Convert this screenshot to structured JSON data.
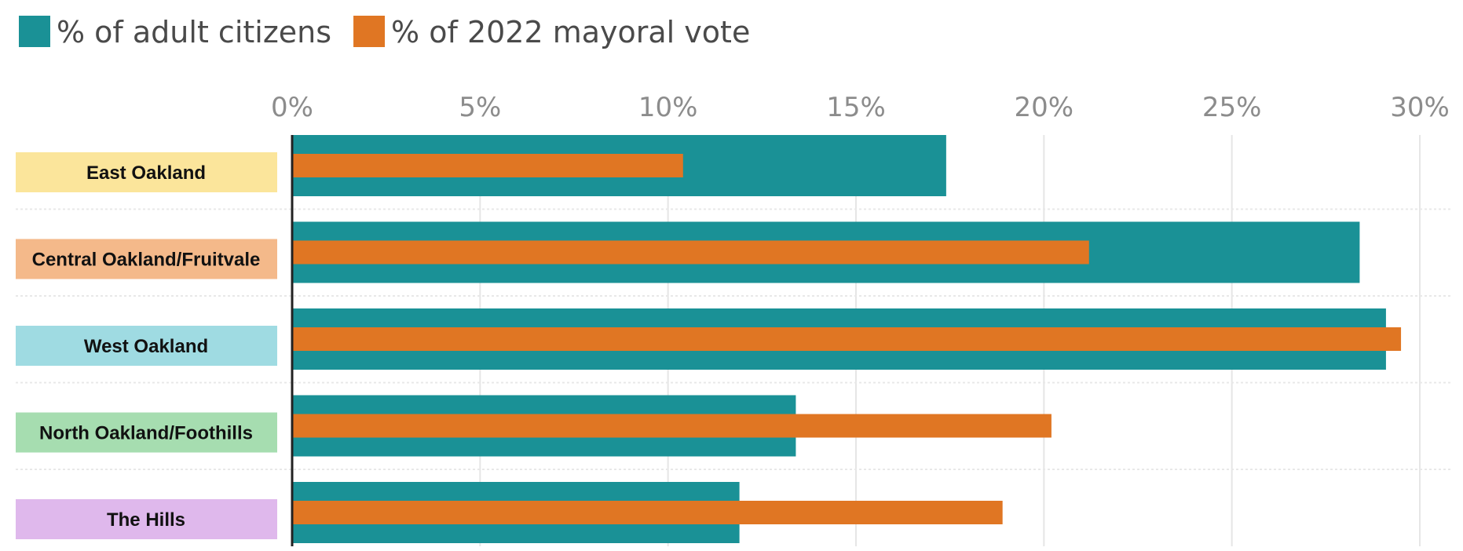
{
  "chart_data": {
    "type": "bar",
    "orientation": "horizontal",
    "categories": [
      "East Oakland",
      "Central Oakland/Fruitvale",
      "West Oakland",
      "North Oakland/Foothills",
      "The Hills"
    ],
    "category_colors": [
      "#fbe59b",
      "#f4b98a",
      "#9fdbe2",
      "#a6ddb0",
      "#dfb8ec"
    ],
    "series": [
      {
        "name": "% of adult citizens",
        "color": "#1a9196",
        "values": [
          17.4,
          28.4,
          29.1,
          13.4,
          11.9
        ]
      },
      {
        "name": "% of 2022 mayoral vote",
        "color": "#e07623",
        "values": [
          10.4,
          21.2,
          29.5,
          20.2,
          18.9
        ]
      }
    ],
    "xlim": [
      0,
      30
    ],
    "xticks": [
      0,
      5,
      10,
      15,
      20,
      25,
      30
    ],
    "tick_suffix": "%",
    "grid": true,
    "legend_position": "top-left"
  }
}
